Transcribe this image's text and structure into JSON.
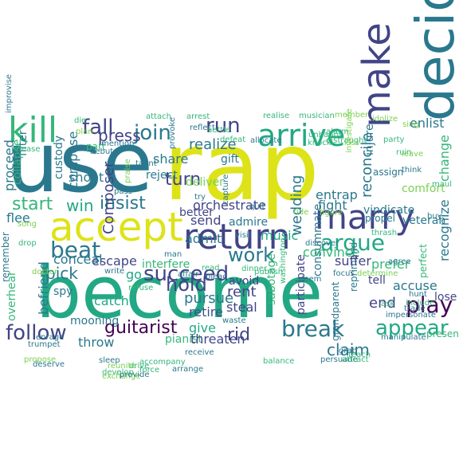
{
  "colors": {
    "background": "#ffffff",
    "teal": "#2a788e",
    "green": "#22a884",
    "blue": "#414487",
    "purple": "#440154",
    "yellow": "#dde318",
    "lime": "#7ad151",
    "mint": "#35b779",
    "navy": "#3b528b"
  },
  "words": [
    {
      "text": "use"
    },
    {
      "text": "rap"
    },
    {
      "text": "become"
    },
    {
      "text": "decide"
    },
    {
      "text": "accept"
    },
    {
      "text": "marry"
    },
    {
      "text": "return"
    },
    {
      "text": "arrive"
    },
    {
      "text": "make"
    },
    {
      "text": "kill"
    },
    {
      "text": "join"
    },
    {
      "text": "run"
    },
    {
      "text": "fall"
    },
    {
      "text": "argue"
    },
    {
      "text": "beat"
    },
    {
      "text": "insist"
    },
    {
      "text": "succeed"
    },
    {
      "text": "play"
    },
    {
      "text": "break"
    },
    {
      "text": "follow"
    },
    {
      "text": "hold"
    },
    {
      "text": "appear"
    },
    {
      "text": "guitarist"
    },
    {
      "text": "work"
    },
    {
      "text": "start"
    },
    {
      "text": "turn"
    },
    {
      "text": "realize"
    },
    {
      "text": "press"
    },
    {
      "text": "share"
    },
    {
      "text": "reconcile"
    },
    {
      "text": "recognize"
    },
    {
      "text": "change"
    },
    {
      "text": "Composer"
    },
    {
      "text": "wedding"
    },
    {
      "text": "consummate"
    },
    {
      "text": "music"
    },
    {
      "text": "send"
    },
    {
      "text": "convince"
    },
    {
      "text": "prefer"
    },
    {
      "text": "pursue"
    },
    {
      "text": "catch"
    },
    {
      "text": "retire"
    },
    {
      "text": "rid"
    },
    {
      "text": "claim"
    },
    {
      "text": "end"
    },
    {
      "text": "accuse"
    },
    {
      "text": "tell"
    },
    {
      "text": "pick"
    },
    {
      "text": "orchestrate"
    },
    {
      "text": "admit"
    },
    {
      "text": "better"
    },
    {
      "text": "win"
    },
    {
      "text": "throw"
    },
    {
      "text": "go"
    },
    {
      "text": "escape"
    },
    {
      "text": "interfere"
    },
    {
      "text": "pianist"
    },
    {
      "text": "give"
    },
    {
      "text": "rent"
    },
    {
      "text": "avoid"
    },
    {
      "text": "steal"
    },
    {
      "text": "threaten"
    },
    {
      "text": "sabotage"
    },
    {
      "text": "participate"
    },
    {
      "text": "grandparent"
    },
    {
      "text": "reprimand"
    },
    {
      "text": "suffer"
    },
    {
      "text": "fight"
    },
    {
      "text": "entrap"
    },
    {
      "text": "vindicate"
    },
    {
      "text": "veteran"
    },
    {
      "text": "filter"
    },
    {
      "text": "enlist"
    },
    {
      "text": "comfort"
    },
    {
      "text": "proceed"
    },
    {
      "text": "compose"
    },
    {
      "text": "custody"
    },
    {
      "text": "shoot"
    },
    {
      "text": "flee"
    },
    {
      "text": "conceal"
    },
    {
      "text": "befriend"
    },
    {
      "text": "spy"
    },
    {
      "text": "mooning"
    },
    {
      "text": "overhear"
    },
    {
      "text": "collapse"
    },
    {
      "text": "remember"
    },
    {
      "text": "reject"
    },
    {
      "text": "deliver"
    },
    {
      "text": "admire"
    },
    {
      "text": "gift"
    },
    {
      "text": "injure"
    },
    {
      "text": "lose"
    },
    {
      "text": "present"
    },
    {
      "text": "perfect"
    },
    {
      "text": "part"
    },
    {
      "text": "plan"
    },
    {
      "text": "die"
    },
    {
      "text": "attach"
    },
    {
      "text": "arrest"
    },
    {
      "text": "reflect"
    },
    {
      "text": "settle"
    },
    {
      "text": "defeat"
    },
    {
      "text": "allocate"
    },
    {
      "text": "knock"
    },
    {
      "text": "alarm"
    },
    {
      "text": "party"
    },
    {
      "text": "idolize"
    },
    {
      "text": "investigate"
    },
    {
      "text": "distraught"
    },
    {
      "text": "realise"
    },
    {
      "text": "musician"
    },
    {
      "text": "assign"
    },
    {
      "text": "think"
    },
    {
      "text": "maul"
    },
    {
      "text": "buy"
    },
    {
      "text": "taunt"
    },
    {
      "text": "sleep"
    },
    {
      "text": "quit"
    },
    {
      "text": "propel"
    },
    {
      "text": "hunt"
    },
    {
      "text": "include"
    },
    {
      "text": "trade"
    },
    {
      "text": "determine"
    },
    {
      "text": "impersonate"
    },
    {
      "text": "manipulate"
    },
    {
      "text": "focus"
    },
    {
      "text": "grab"
    },
    {
      "text": "teach"
    },
    {
      "text": "publish"
    },
    {
      "text": "dinner"
    },
    {
      "text": "plead"
    },
    {
      "text": "read"
    },
    {
      "text": "affair"
    },
    {
      "text": "refuse"
    },
    {
      "text": "force"
    },
    {
      "text": "drive"
    },
    {
      "text": "develop"
    },
    {
      "text": "arrange"
    },
    {
      "text": "trumpet"
    },
    {
      "text": "enrage"
    },
    {
      "text": "doctor"
    },
    {
      "text": "song"
    },
    {
      "text": "drop"
    },
    {
      "text": "improvise"
    },
    {
      "text": "debut"
    },
    {
      "text": "mention"
    },
    {
      "text": "pass"
    },
    {
      "text": "try"
    },
    {
      "text": "capture"
    },
    {
      "text": "waste"
    },
    {
      "text": "balance"
    },
    {
      "text": "persuade"
    },
    {
      "text": "attract"
    },
    {
      "text": "figure"
    },
    {
      "text": "deem"
    },
    {
      "text": "ask"
    },
    {
      "text": "exchange"
    },
    {
      "text": "provide"
    },
    {
      "text": "unhappy"
    },
    {
      "text": "release"
    },
    {
      "text": "deserve"
    },
    {
      "text": "propose"
    },
    {
      "text": "reunite"
    },
    {
      "text": "write"
    },
    {
      "text": "praise"
    },
    {
      "text": "receive"
    },
    {
      "text": "washington"
    },
    {
      "text": "ride"
    },
    {
      "text": "agree"
    },
    {
      "text": "sing"
    },
    {
      "text": "ruin"
    },
    {
      "text": "member"
    },
    {
      "text": "thrash"
    },
    {
      "text": "discover"
    },
    {
      "text": "provoke"
    },
    {
      "text": "leave"
    },
    {
      "text": "kiss"
    },
    {
      "text": "man"
    },
    {
      "text": "accompany"
    },
    {
      "text": "visit"
    }
  ]
}
